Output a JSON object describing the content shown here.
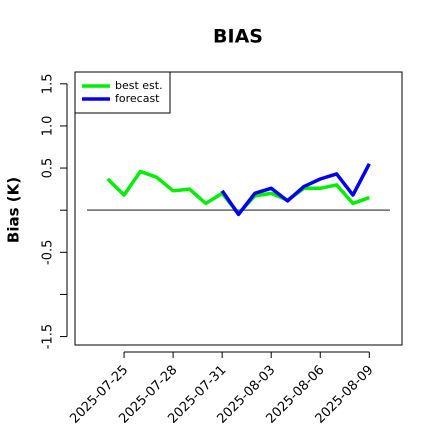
{
  "chart_data": {
    "type": "line",
    "title": "BIAS",
    "y_label": "Bias (K)",
    "x": [
      "2025-07-24",
      "2025-07-25",
      "2025-07-26",
      "2025-07-27",
      "2025-07-28",
      "2025-07-29",
      "2025-07-30",
      "2025-07-31",
      "2025-08-01",
      "2025-08-02",
      "2025-08-03",
      "2025-08-04",
      "2025-08-05",
      "2025-08-06",
      "2025-08-07",
      "2025-08-08",
      "2025-08-09"
    ],
    "series": [
      {
        "name": "best est.",
        "color": "#00ee00",
        "values": [
          0.37,
          0.18,
          0.46,
          0.39,
          0.23,
          0.25,
          0.08,
          0.2,
          -0.04,
          0.17,
          0.2,
          0.12,
          0.26,
          0.26,
          0.3,
          0.08,
          0.15
        ]
      },
      {
        "name": "forecast",
        "color": "#0000ee",
        "values": [
          null,
          null,
          null,
          null,
          null,
          null,
          null,
          0.23,
          -0.05,
          0.2,
          0.26,
          0.11,
          0.28,
          0.37,
          0.43,
          0.18,
          0.55
        ]
      }
    ],
    "xlim": [
      "2025-07-22",
      "2025-08-11"
    ],
    "xticks": [
      {
        "value": "2025-07-25",
        "label": "2025-07-25",
        "color": "#000000"
      },
      {
        "value": "2025-07-28",
        "label": "2025-07-28",
        "color": "#000000"
      },
      {
        "value": "2025-07-31",
        "label": "2025-07-31",
        "color": "#228b22"
      },
      {
        "value": "2025-08-03",
        "label": "2025-08-03",
        "color": "#000000"
      },
      {
        "value": "2025-08-06",
        "label": "2025-08-06",
        "color": "#000000"
      },
      {
        "value": "2025-08-09",
        "label": "2025-08-09",
        "color": "#000000"
      }
    ],
    "ylim": [
      -1.6,
      1.64
    ],
    "yticks": [
      {
        "value": -1.5,
        "label": "-1.5"
      },
      {
        "value": -1,
        "label": null
      },
      {
        "value": -0.5,
        "label": "-0.5"
      },
      {
        "value": 0,
        "label": null
      },
      {
        "value": 0.5,
        "label": "0.5"
      },
      {
        "value": 1,
        "label": "1.0"
      },
      {
        "value": 1.5,
        "label": "1.5"
      }
    ],
    "hline": 0,
    "hline_color": "#666666",
    "legend": "top-left"
  }
}
